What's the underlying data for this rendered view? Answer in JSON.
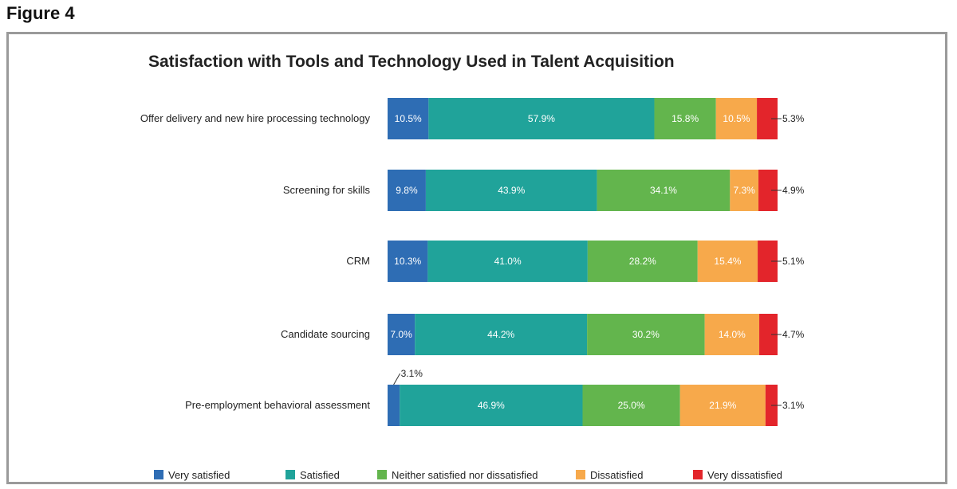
{
  "figure_label": "Figure 4",
  "chart_data": {
    "type": "bar",
    "orientation": "horizontal",
    "stacked": true,
    "title": "Satisfaction with Tools and Technology Used in Talent Acquisition",
    "categories": [
      "Offer delivery and new hire processing technology",
      "Screening for skills",
      "CRM",
      "Candidate sourcing",
      "Pre-employment behavioral assessment"
    ],
    "series": [
      {
        "name": "Very satisfied",
        "color": "#2e6db4",
        "values": [
          10.5,
          9.8,
          10.3,
          7.0,
          3.1
        ],
        "labels": [
          "10.5%",
          "9.8%",
          "10.3%",
          "7.0%",
          "3.1%"
        ]
      },
      {
        "name": "Satisfied",
        "color": "#20a39a",
        "values": [
          57.9,
          43.9,
          41.0,
          44.2,
          46.9
        ],
        "labels": [
          "57.9%",
          "43.9%",
          "41.0%",
          "44.2%",
          "46.9%"
        ]
      },
      {
        "name": "Neither satisfied nor dissatisfied",
        "color": "#63b54d",
        "values": [
          15.8,
          34.1,
          28.2,
          30.2,
          25.0
        ],
        "labels": [
          "15.8%",
          "34.1%",
          "28.2%",
          "30.2%",
          "25.0%"
        ]
      },
      {
        "name": "Dissatisfied",
        "color": "#f7a94b",
        "values": [
          10.5,
          7.3,
          15.4,
          14.0,
          21.9
        ],
        "labels": [
          "10.5%",
          "7.3%",
          "15.4%",
          "14.0%",
          "21.9%"
        ]
      },
      {
        "name": "Very dissatisfied",
        "color": "#e3252b",
        "values": [
          5.3,
          4.9,
          5.1,
          4.7,
          3.1
        ],
        "labels": [
          "5.3%",
          "4.9%",
          "5.1%",
          "4.7%",
          "3.1%"
        ]
      }
    ],
    "xlim": [
      0,
      100
    ],
    "grid": false,
    "legend_position": "bottom"
  }
}
